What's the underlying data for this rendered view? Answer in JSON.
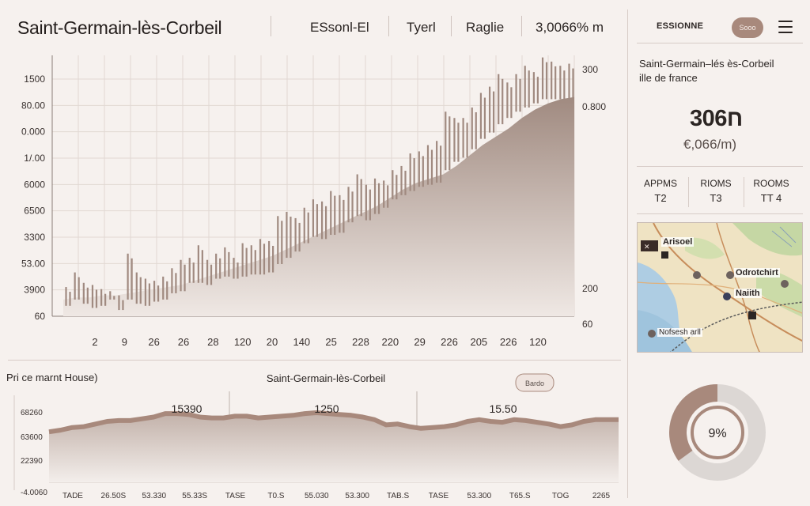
{
  "header": {
    "title": "Saint-Germain-lès-Corbeil",
    "item1": "ESsonl-El",
    "item2": "Tyerl",
    "item3": "Raglie",
    "item4": "3,0066% m",
    "region_label": "ESSIONNE",
    "region_badge": "Sooo"
  },
  "side": {
    "place_name": "Saint-Germain–lés ès-Corbeil",
    "place_region": "ille de france",
    "price_main": "306ח",
    "price_sqm": "€,066/m)",
    "rooms": [
      {
        "head": "APPMS",
        "value": "T2"
      },
      {
        "head": "RIOMS",
        "value": "T3"
      },
      {
        "head": "ROOMS",
        "value": "TT 4"
      }
    ]
  },
  "map": {
    "labels": [
      "Arisoel",
      "Odrotchirt",
      "Naiith",
      "Nofsesh arll"
    ]
  },
  "donut": {
    "label": "9%",
    "fraction": 0.35,
    "colors": {
      "filled": "#a8897c",
      "rest": "#dcd7d4"
    }
  },
  "chart_data": [
    {
      "type": "bar",
      "title": "",
      "ylabels_left": [
        "1500",
        "80.00",
        "0.000",
        "1/.00",
        "6000",
        "6500",
        "3300",
        "53.00",
        "3900",
        "60"
      ],
      "ylabels_right": [
        "300",
        "0.800",
        "200",
        "60"
      ],
      "xlabels": [
        "2",
        "9",
        "26",
        "26",
        "28",
        "120",
        "20",
        "140",
        "25",
        "228",
        "220",
        "29",
        "226",
        "205",
        "226",
        "120"
      ],
      "area_values": [
        8,
        9,
        9,
        10,
        10,
        11,
        12,
        13,
        14,
        15,
        17,
        19,
        21,
        23,
        25,
        27,
        29,
        32,
        35,
        38,
        41,
        44,
        47,
        50,
        53,
        57,
        61,
        64,
        66,
        68,
        72,
        77,
        82,
        86,
        90,
        95,
        99,
        102,
        104,
        105
      ],
      "bars": [
        [
          5,
          14
        ],
        [
          8,
          21
        ],
        [
          6,
          16
        ],
        [
          4,
          15
        ],
        [
          5,
          13
        ],
        [
          8,
          12
        ],
        [
          3,
          10
        ],
        [
          8,
          30
        ],
        [
          6,
          21
        ],
        [
          5,
          18
        ],
        [
          7,
          17
        ],
        [
          8,
          19
        ],
        [
          11,
          23
        ],
        [
          12,
          27
        ],
        [
          16,
          28
        ],
        [
          16,
          34
        ],
        [
          15,
          27
        ],
        [
          18,
          30
        ],
        [
          19,
          33
        ],
        [
          18,
          28
        ],
        [
          19,
          35
        ],
        [
          20,
          34
        ],
        [
          20,
          37
        ],
        [
          21,
          36
        ],
        [
          25,
          48
        ],
        [
          28,
          50
        ],
        [
          31,
          47
        ],
        [
          35,
          52
        ],
        [
          38,
          56
        ],
        [
          37,
          55
        ],
        [
          39,
          60
        ],
        [
          40,
          58
        ],
        [
          45,
          62
        ],
        [
          48,
          68
        ],
        [
          46,
          63
        ],
        [
          49,
          66
        ],
        [
          52,
          65
        ],
        [
          56,
          70
        ],
        [
          58,
          72
        ],
        [
          60,
          78
        ],
        [
          62,
          79
        ],
        [
          63,
          82
        ],
        [
          64,
          84
        ],
        [
          70,
          98
        ],
        [
          74,
          95
        ],
        [
          76,
          95
        ],
        [
          80,
          100
        ],
        [
          85,
          107
        ],
        [
          88,
          110
        ],
        [
          92,
          116
        ],
        [
          95,
          112
        ],
        [
          98,
          116
        ],
        [
          100,
          120
        ],
        [
          102,
          117
        ],
        [
          104,
          124
        ],
        [
          104,
          122
        ],
        [
          104,
          120
        ],
        [
          104,
          121
        ]
      ]
    },
    {
      "type": "area",
      "title": "Saint-Germain-lès-Corbeil",
      "legend_label": "Pri ce marnt House)",
      "tag": "Bardo",
      "peak_labels": [
        "15390",
        "1250",
        "15.50"
      ],
      "ylabels": [
        "68260",
        "63600",
        "22390",
        "-4.0060"
      ],
      "xlabels": [
        "TADE",
        "26.50S",
        "53.330",
        "55.33S",
        "TASE",
        "T0.S",
        "55.030",
        "53.300",
        "TAB.S",
        "TASE",
        "53.300",
        "T65.S",
        "TOG",
        "2265"
      ],
      "values": [
        58,
        60,
        63,
        64,
        67,
        70,
        71,
        71,
        73,
        75,
        79,
        79,
        78,
        75,
        74,
        74,
        76,
        76,
        74,
        75,
        76,
        77,
        79,
        80,
        79,
        78,
        77,
        75,
        72,
        66,
        67,
        64,
        62,
        63,
        64,
        66,
        70,
        72,
        70,
        69,
        72,
        71,
        69,
        67,
        64,
        66,
        70,
        72,
        72,
        72
      ]
    }
  ]
}
